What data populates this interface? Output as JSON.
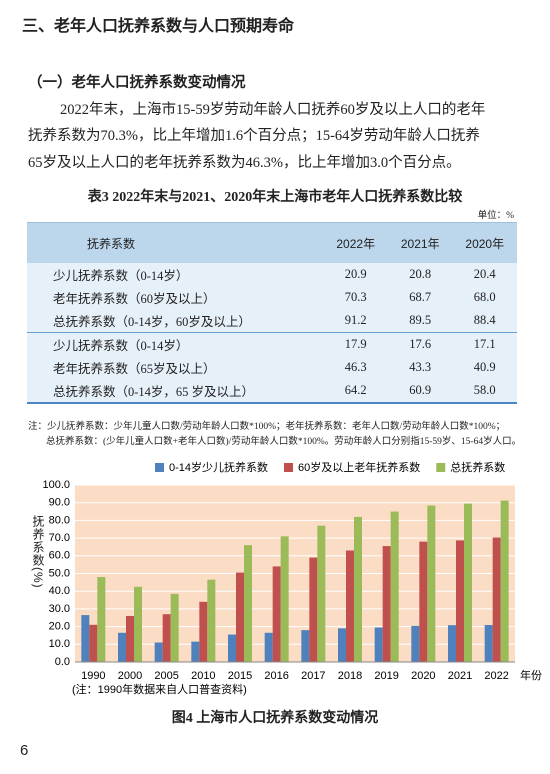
{
  "heading": "三、老年人口抚养系数与人口预期寿命",
  "section": {
    "title": "（一）老年人口抚养系数变动情况",
    "paragraph": [
      "2022年末，上海市15-59岁劳动年龄人口抚养60岁及以上人口的老年",
      "抚养系数为70.3%，比上年增加1.6个百分点；15-64岁劳动年龄人口抚养",
      "65岁及以上人口的老年抚养系数为46.3%，比上年增加3.0个百分点。"
    ]
  },
  "table": {
    "title": "表3  2022年末与2021、2020年末上海市老年人口抚养系数比较",
    "unit": "单位：%",
    "columns": [
      "抚养系数",
      "2022年",
      "2021年",
      "2020年"
    ],
    "rows": [
      [
        "少儿抚养系数（0-14岁）",
        "20.9",
        "20.8",
        "20.4"
      ],
      [
        "老年抚养系数（60岁及以上）",
        "70.3",
        "68.7",
        "68.0"
      ],
      [
        "总抚养系数（0-14岁，60岁及以上）",
        "91.2",
        "89.5",
        "88.4"
      ],
      [
        "少儿抚养系数（0-14岁）",
        "17.9",
        "17.6",
        "17.1"
      ],
      [
        "老年抚养系数（65岁及以上）",
        "46.3",
        "43.3",
        "40.9"
      ],
      [
        "总抚养系数（0-14岁，65 岁及以上）",
        "64.2",
        "60.9",
        "58.0"
      ]
    ],
    "notes": [
      "注：少儿抚养系数：少年儿童人口数/劳动年龄人口数*100%；老年抚养系数：老年人口数/劳动年龄人口数*100%；",
      "总抚养系数：(少年儿童人口数+老年人口数)/劳动年龄人口数*100%。劳动年龄人口分别指15-59岁、15-64岁人口。"
    ]
  },
  "chart_data": {
    "type": "bar",
    "y_label": "抚养系数(%)",
    "x_label": "年份",
    "note": "(注：1990年数据来自人口普查资料)",
    "categories": [
      "1990",
      "2000",
      "2005",
      "2010",
      "2015",
      "2016",
      "2017",
      "2018",
      "2019",
      "2020",
      "2021",
      "2022"
    ],
    "series": [
      {
        "name": "0-14岁少儿抚养系数",
        "color": "#4f81bd",
        "values": [
          26.5,
          16.5,
          11,
          11.5,
          15.5,
          16.5,
          18,
          19,
          19.5,
          20.4,
          20.8,
          20.9
        ]
      },
      {
        "name": "60岁及以上老年抚养系数",
        "color": "#c0504d",
        "values": [
          21,
          26,
          27,
          34,
          50.5,
          54,
          59,
          63,
          65.5,
          68,
          68.7,
          70.3
        ]
      },
      {
        "name": "总抚养系数",
        "color": "#9bbb59",
        "values": [
          48,
          42.5,
          38.5,
          46.5,
          66,
          71,
          77,
          82,
          85,
          88.4,
          89.5,
          91.2
        ]
      }
    ],
    "ylim": [
      0,
      100
    ],
    "yticks": [
      {
        "value": 0,
        "label": "0.0"
      },
      {
        "value": 10,
        "label": "10.0"
      },
      {
        "value": 20,
        "label": "20.0"
      },
      {
        "value": 30,
        "label": "30.0"
      },
      {
        "value": 40,
        "label": "40.0"
      },
      {
        "value": 50,
        "label": "50.0"
      },
      {
        "value": 60,
        "label": "60.0"
      },
      {
        "value": 70,
        "label": "70.0"
      },
      {
        "value": 80,
        "label": "80.0"
      },
      {
        "value": 90,
        "label": "90.0"
      },
      {
        "value": 100,
        "label": "100.0"
      }
    ],
    "grid": true
  },
  "figure_caption": "图4  上海市人口抚养系数变动情况",
  "page_number": "6"
}
